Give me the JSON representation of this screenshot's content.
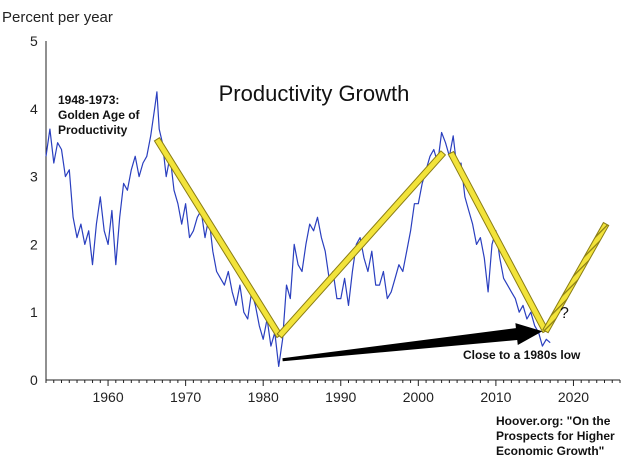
{
  "chart_data": {
    "type": "line",
    "title": "Productivity Growth",
    "ylabel": "Percent per year",
    "xlim": [
      1952,
      2026
    ],
    "ylim": [
      0,
      5
    ],
    "xticks": [
      1960,
      1970,
      1980,
      1990,
      2000,
      2010,
      2020
    ],
    "yticks": [
      0,
      1,
      2,
      3,
      4,
      5
    ],
    "grid": false,
    "colors": {
      "series": "#2a3fbf",
      "trend_fill": "#f2e33a",
      "trend_edge": "#8a7d14",
      "arrow": "#000000"
    },
    "series": [
      {
        "x": [
          1952,
          1952.5,
          1953,
          1953.5,
          1954,
          1954.5,
          1955,
          1955.5,
          1956,
          1956.5,
          1957,
          1957.5,
          1958,
          1958.5,
          1959,
          1959.5,
          1960,
          1960.5,
          1961,
          1961.5,
          1962,
          1962.5,
          1963,
          1963.5,
          1964,
          1964.5,
          1965,
          1965.5,
          1966,
          1966.3,
          1966.6,
          1967,
          1967.5,
          1968,
          1968.5,
          1969,
          1969.5,
          1970,
          1970.5,
          1971,
          1971.5,
          1972,
          1972.5,
          1973,
          1973.5,
          1974,
          1974.5,
          1975,
          1975.5,
          1976,
          1976.5,
          1977,
          1977.5,
          1978,
          1978.5,
          1979,
          1979.5,
          1980,
          1980.5,
          1981,
          1981.5,
          1982,
          1982.5,
          1983,
          1983.5,
          1984,
          1984.5,
          1985,
          1985.5,
          1986,
          1986.5,
          1987,
          1987.5,
          1988,
          1988.5,
          1989,
          1989.5,
          1990,
          1990.5,
          1991,
          1991.5,
          1992,
          1992.5,
          1993,
          1993.5,
          1994,
          1994.5,
          1995,
          1995.5,
          1996,
          1996.5,
          1997,
          1997.5,
          1998,
          1998.5,
          1999,
          1999.5,
          2000,
          2000.5,
          2001,
          2001.5,
          2002,
          2002.5,
          2003,
          2003.5,
          2004,
          2004.5,
          2005,
          2005.5,
          2006,
          2006.5,
          2007,
          2007.5,
          2008,
          2008.5,
          2009,
          2009.5,
          2010,
          2010.5,
          2011,
          2011.5,
          2012,
          2012.5,
          2013,
          2013.5,
          2014,
          2014.5,
          2015,
          2015.5,
          2016,
          2016.5,
          2017
        ],
        "values": [
          3.3,
          3.7,
          3.2,
          3.5,
          3.4,
          3.0,
          3.1,
          2.4,
          2.1,
          2.3,
          2.0,
          2.2,
          1.7,
          2.3,
          2.7,
          2.2,
          2.0,
          2.5,
          1.7,
          2.4,
          2.9,
          2.8,
          3.1,
          3.3,
          3.0,
          3.2,
          3.3,
          3.6,
          4.0,
          4.25,
          3.7,
          3.5,
          3.0,
          3.3,
          2.8,
          2.6,
          2.3,
          2.6,
          2.1,
          2.2,
          2.4,
          2.5,
          2.1,
          2.4,
          1.9,
          1.6,
          1.5,
          1.4,
          1.6,
          1.3,
          1.1,
          1.4,
          1.0,
          0.9,
          1.3,
          1.1,
          0.8,
          0.6,
          0.9,
          0.5,
          0.7,
          0.2,
          0.6,
          1.4,
          1.2,
          2.0,
          1.7,
          1.6,
          2.0,
          2.3,
          2.2,
          2.4,
          2.1,
          1.9,
          1.5,
          1.6,
          1.2,
          1.2,
          1.5,
          1.1,
          1.6,
          2.0,
          2.1,
          1.8,
          1.6,
          1.9,
          1.4,
          1.4,
          1.6,
          1.2,
          1.3,
          1.5,
          1.7,
          1.6,
          1.9,
          2.2,
          2.6,
          2.6,
          2.9,
          3.1,
          3.3,
          3.4,
          3.2,
          3.65,
          3.5,
          3.3,
          3.6,
          3.1,
          3.2,
          2.7,
          2.5,
          2.3,
          2.0,
          2.1,
          1.8,
          1.3,
          2.0,
          2.2,
          1.8,
          1.5,
          1.4,
          1.3,
          1.2,
          1.0,
          1.1,
          0.9,
          1.0,
          0.8,
          0.7,
          0.5,
          0.6,
          0.55
        ]
      }
    ],
    "trend_segments": [
      {
        "x": [
          1966.3,
          1982.1
        ],
        "y": [
          3.55,
          0.65
        ]
      },
      {
        "x": [
          1982.1,
          2003.2
        ],
        "y": [
          0.65,
          3.35
        ]
      },
      {
        "x": [
          2004.2,
          2016.4
        ],
        "y": [
          3.35,
          0.72
        ]
      },
      {
        "x": [
          2016.4,
          2024.2
        ],
        "y": [
          0.72,
          2.3
        ],
        "dashed": true
      }
    ],
    "arrow": {
      "x": [
        1982.5,
        2016.0
      ],
      "y": [
        0.3,
        0.72
      ]
    },
    "annotations": {
      "golden_age": [
        "1948-1973:",
        "Golden Age of",
        "Productivity"
      ],
      "close_low": "Close to a 1980s low",
      "question": "?",
      "source": [
        "Hoover.org: \"On the",
        "Prospects for Higher",
        "Economic Growth\""
      ]
    }
  }
}
